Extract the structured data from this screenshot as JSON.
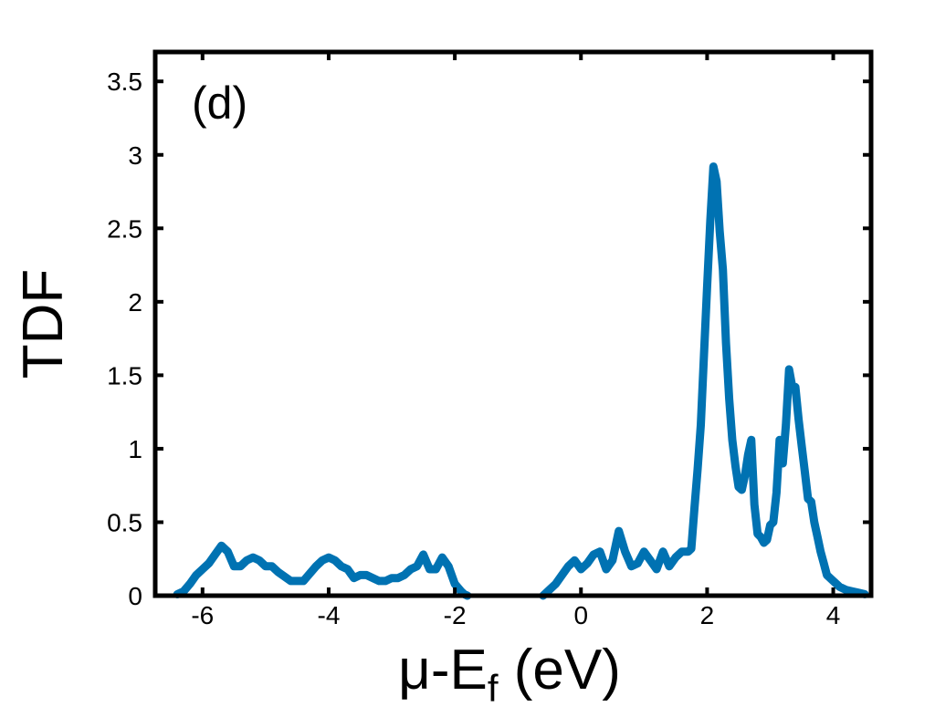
{
  "chart_data": {
    "type": "line",
    "panel_label": "(d)",
    "xlabel_main": "μ-E",
    "xlabel_sub": "f",
    "xlabel_unit": " (eV)",
    "ylabel": "TDF",
    "xlim": [
      -6.75,
      4.6
    ],
    "ylim": [
      0,
      3.7
    ],
    "x_ticks": [
      -6,
      -4,
      -2,
      0,
      2,
      4
    ],
    "x_tick_labels": [
      "-6",
      "-4",
      "-2",
      "0",
      "2",
      "4"
    ],
    "y_ticks": [
      0,
      0.5,
      1,
      1.5,
      2,
      2.5,
      3,
      3.5
    ],
    "y_tick_labels": [
      "0",
      "0.5",
      "1",
      "1.5",
      "2",
      "2.5",
      "3",
      "3.5"
    ],
    "grid": false,
    "legend": "none",
    "series": [
      {
        "color": "#0072b2",
        "x": [
          -6.4,
          -6.3,
          -6.2,
          -6.1,
          -6.0,
          -5.9,
          -5.8,
          -5.7,
          -5.6,
          -5.5,
          -5.4,
          -5.3,
          -5.2,
          -5.1,
          -5.0,
          -4.9,
          -4.8,
          -4.6,
          -4.4,
          -4.2,
          -4.1,
          -4.0,
          -3.9,
          -3.8,
          -3.7,
          -3.6,
          -3.5,
          -3.4,
          -3.3,
          -3.2,
          -3.1,
          -3.0,
          -2.9,
          -2.8,
          -2.7,
          -2.6,
          -2.5,
          -2.4,
          -2.3,
          -2.2,
          -2.1,
          -2.0,
          -1.9,
          -1.85,
          -1.8,
          -0.6,
          -0.5,
          -0.4,
          -0.3,
          -0.2,
          -0.1,
          0.0,
          0.1,
          0.2,
          0.3,
          0.4,
          0.5,
          0.6,
          0.7,
          0.8,
          0.9,
          1.0,
          1.1,
          1.2,
          1.3,
          1.4,
          1.5,
          1.6,
          1.7,
          1.75,
          1.8,
          1.85,
          1.9,
          1.95,
          2.0,
          2.05,
          2.1,
          2.15,
          2.2,
          2.25,
          2.3,
          2.35,
          2.4,
          2.45,
          2.5,
          2.55,
          2.6,
          2.65,
          2.7,
          2.75,
          2.8,
          2.85,
          2.9,
          2.95,
          3.0,
          3.05,
          3.1,
          3.15,
          3.2,
          3.25,
          3.3,
          3.35,
          3.4,
          3.45,
          3.5,
          3.55,
          3.6,
          3.65,
          3.7,
          3.75,
          3.8,
          3.85,
          3.9,
          4.0,
          4.1,
          4.2,
          4.3,
          4.4,
          4.5
        ],
        "y": [
          0.01,
          0.03,
          0.08,
          0.14,
          0.18,
          0.22,
          0.28,
          0.34,
          0.3,
          0.2,
          0.2,
          0.24,
          0.26,
          0.24,
          0.2,
          0.2,
          0.16,
          0.1,
          0.1,
          0.2,
          0.24,
          0.26,
          0.24,
          0.2,
          0.18,
          0.12,
          0.14,
          0.14,
          0.12,
          0.1,
          0.1,
          0.12,
          0.12,
          0.14,
          0.18,
          0.2,
          0.28,
          0.18,
          0.18,
          0.26,
          0.2,
          0.08,
          0.03,
          0.01,
          0.0,
          0.0,
          0.04,
          0.08,
          0.14,
          0.2,
          0.24,
          0.18,
          0.22,
          0.28,
          0.3,
          0.18,
          0.24,
          0.44,
          0.3,
          0.2,
          0.22,
          0.3,
          0.24,
          0.18,
          0.3,
          0.2,
          0.26,
          0.3,
          0.3,
          0.32,
          0.6,
          0.86,
          1.16,
          1.64,
          2.1,
          2.55,
          2.92,
          2.82,
          2.48,
          2.22,
          1.72,
          1.34,
          1.06,
          0.88,
          0.74,
          0.72,
          0.82,
          0.96,
          1.06,
          0.62,
          0.42,
          0.4,
          0.36,
          0.38,
          0.48,
          0.5,
          0.7,
          1.06,
          0.9,
          1.16,
          1.54,
          1.42,
          1.42,
          1.2,
          1.02,
          0.84,
          0.66,
          0.64,
          0.5,
          0.4,
          0.3,
          0.22,
          0.14,
          0.1,
          0.06,
          0.04,
          0.03,
          0.02,
          0.01
        ]
      }
    ]
  }
}
